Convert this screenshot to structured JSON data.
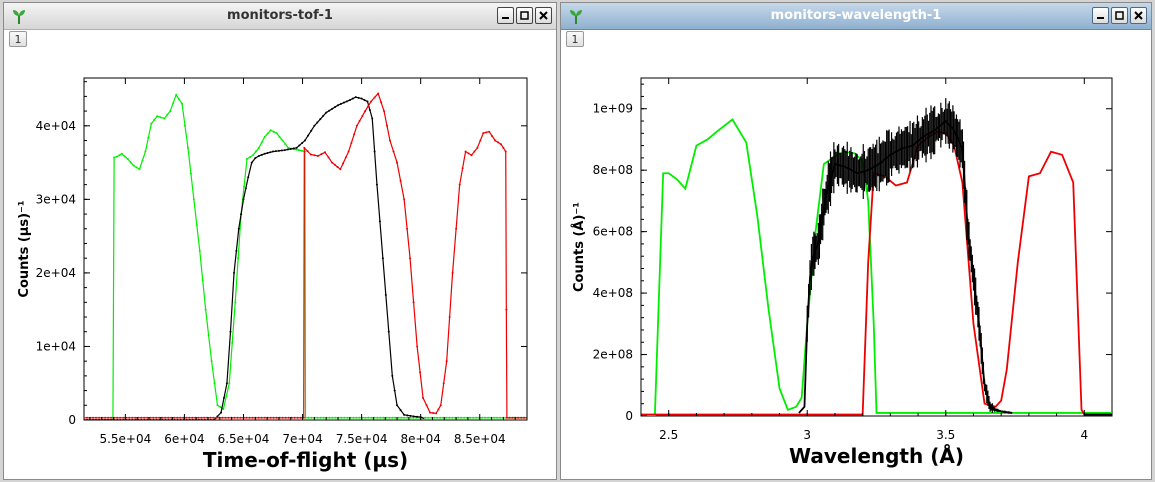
{
  "windows": [
    {
      "title": "monitors-tof-1",
      "tab_label": "1",
      "chart_data": {
        "type": "line",
        "xlabel": "Time-of-flight (µs)",
        "ylabel": "Counts (µs)⁻¹",
        "xlim": [
          51500,
          89000
        ],
        "ylim": [
          0,
          46500
        ],
        "xticks": [
          55000,
          60000,
          65000,
          70000,
          75000,
          80000,
          85000
        ],
        "xtick_labels": [
          "5.5e+04",
          "6e+04",
          "6.5e+04",
          "7e+04",
          "7.5e+04",
          "8e+04",
          "8.5e+04"
        ],
        "yticks": [
          0,
          10000,
          20000,
          30000,
          40000
        ],
        "ytick_labels": [
          "0",
          "1e+04",
          "2e+04",
          "3e+04",
          "4e+04"
        ],
        "grid": false,
        "series": [
          {
            "color": "#00ee00",
            "x": [
              51500,
              53950,
              54050,
              54300,
              54700,
              55200,
              55700,
              56200,
              56700,
              57200,
              57700,
              58300,
              58800,
              59300,
              59800,
              60300,
              60800,
              61300,
              61800,
              62300,
              62800,
              63300,
              63800,
              64300,
              64800,
              65300,
              65800,
              66300,
              66800,
              67300,
              67800,
              68300,
              68800,
              69300,
              69700,
              70200,
              70250,
              89000
            ],
            "y": [
              0,
              0,
              35700,
              35800,
              36200,
              35500,
              34600,
              34100,
              36500,
              40300,
              41300,
              41000,
              42000,
              44200,
              43000,
              37000,
              30000,
              23000,
              15000,
              8000,
              2000,
              1500,
              5000,
              16000,
              28000,
              35500,
              36000,
              37000,
              38500,
              39400,
              39000,
              38000,
              37000,
              36800,
              36700,
              36500,
              300,
              300
            ]
          },
          {
            "color": "#000000",
            "x": [
              51500,
              62500,
              63100,
              63600,
              63900,
              64200,
              64600,
              65000,
              65400,
              65700,
              66000,
              66300,
              66800,
              67500,
              68500,
              69500,
              70200,
              71000,
              72000,
              73000,
              74000,
              74500,
              75000,
              75500,
              75900,
              76300,
              76800,
              77300,
              77600,
              78000,
              78600,
              79400,
              80000,
              80300
            ],
            "y": [
              0,
              0,
              1000,
              5000,
              12000,
              20000,
              26000,
              30000,
              33000,
              35000,
              35600,
              35900,
              36200,
              36500,
              36700,
              37000,
              38000,
              40000,
              41800,
              42800,
              43500,
              43900,
              43700,
              43300,
              41000,
              32000,
              22000,
              12000,
              6000,
              2000,
              700,
              500,
              400,
              200
            ]
          },
          {
            "color": "#ee0000",
            "x": [
              51500,
              70100,
              70150,
              70700,
              71300,
              71900,
              72500,
              73200,
              73900,
              74600,
              75300,
              75800,
              76400,
              76900,
              77400,
              78000,
              78600,
              79100,
              79700,
              80200,
              80800,
              81300,
              81700,
              82200,
              82700,
              83300,
              83800,
              84300,
              84800,
              85300,
              85800,
              86300,
              86800,
              87200,
              87250,
              87300,
              89000
            ],
            "y": [
              300,
              300,
              37000,
              36100,
              35900,
              36400,
              35000,
              34100,
              36500,
              40000,
              42000,
              43300,
              44400,
              42000,
              38000,
              35000,
              30000,
              22000,
              10000,
              3000,
              1000,
              900,
              2000,
              8000,
              20000,
              32000,
              36500,
              36000,
              37000,
              39000,
              39200,
              38000,
              37500,
              36500,
              15000,
              300,
              300
            ]
          }
        ]
      }
    },
    {
      "title": "monitors-wavelength-1",
      "tab_label": "1",
      "chart_data": {
        "type": "line",
        "xlabel": "Wavelength (Å)",
        "ylabel": "Counts (Å)⁻¹",
        "xlim": [
          2.4,
          4.1
        ],
        "ylim": [
          0,
          1100000000
        ],
        "xticks": [
          2.5,
          3,
          3.5,
          4
        ],
        "xtick_labels": [
          "2.5",
          "3",
          "3.5",
          "4"
        ],
        "yticks": [
          0,
          200000000,
          400000000,
          600000000,
          800000000,
          1000000000
        ],
        "ytick_labels": [
          "0",
          "2e+08",
          "4e+08",
          "6e+08",
          "8e+08",
          "1e+09"
        ],
        "grid": false,
        "series": [
          {
            "color": "#00ee00",
            "x": [
              2.4,
              2.45,
              2.48,
              2.5,
              2.53,
              2.56,
              2.6,
              2.64,
              2.68,
              2.73,
              2.78,
              2.82,
              2.86,
              2.9,
              2.93,
              2.96,
              2.98,
              3.0,
              3.03,
              3.06,
              3.1,
              3.13,
              3.17,
              3.2,
              3.22,
              3.24,
              3.25,
              4.1
            ],
            "y": [
              0,
              0,
              790000000,
              790000000,
              770000000,
              740000000,
              880000000,
              900000000,
              930000000,
              965000000,
              890000000,
              650000000,
              350000000,
              90000000,
              20000000,
              30000000,
              60000000,
              300000000,
              600000000,
              820000000,
              845000000,
              860000000,
              855000000,
              830000000,
              700000000,
              300000000,
              10000000,
              10000000
            ]
          },
          {
            "color": "#ee0000",
            "x": [
              2.4,
              3.2,
              3.22,
              3.24,
              3.28,
              3.32,
              3.36,
              3.4,
              3.44,
              3.47,
              3.5,
              3.53,
              3.56,
              3.6,
              3.64,
              3.68,
              3.7,
              3.72,
              3.76,
              3.8,
              3.84,
              3.88,
              3.92,
              3.96,
              3.99,
              4.0,
              4.1
            ],
            "y": [
              5000000,
              5000000,
              500000000,
              790000000,
              780000000,
              750000000,
              760000000,
              880000000,
              910000000,
              925000000,
              920000000,
              880000000,
              760000000,
              300000000,
              40000000,
              30000000,
              50000000,
              150000000,
              500000000,
              780000000,
              790000000,
              860000000,
              850000000,
              760000000,
              20000000,
              5000000,
              5000000
            ]
          },
          {
            "color": "#000000",
            "x": [
              2.97,
              2.99,
              3.0,
              3.01,
              3.02,
              3.04,
              3.06,
              3.08,
              3.1,
              3.14,
              3.18,
              3.22,
              3.26,
              3.3,
              3.34,
              3.38,
              3.42,
              3.46,
              3.5,
              3.53,
              3.56,
              3.58,
              3.6,
              3.62,
              3.64,
              3.66,
              3.68,
              3.7,
              3.74
            ],
            "y": [
              10000000,
              30000000,
              300000000,
              450000000,
              520000000,
              560000000,
              680000000,
              760000000,
              820000000,
              810000000,
              790000000,
              800000000,
              820000000,
              850000000,
              870000000,
              880000000,
              910000000,
              930000000,
              960000000,
              930000000,
              870000000,
              600000000,
              450000000,
              300000000,
              100000000,
              30000000,
              20000000,
              15000000,
              10000000
            ],
            "noise": [
              0,
              0,
              60000000,
              80000000,
              80000000,
              80000000,
              90000000,
              90000000,
              90000000,
              90000000,
              90000000,
              90000000,
              90000000,
              90000000,
              90000000,
              90000000,
              90000000,
              90000000,
              90000000,
              90000000,
              90000000,
              80000000,
              70000000,
              60000000,
              40000000,
              20000000,
              10000000,
              5000000,
              5000000
            ]
          },
          {
            "color": "#000000",
            "x": [
              4.0,
              4.1
            ],
            "y": [
              5000000,
              5000000
            ]
          }
        ]
      }
    }
  ]
}
